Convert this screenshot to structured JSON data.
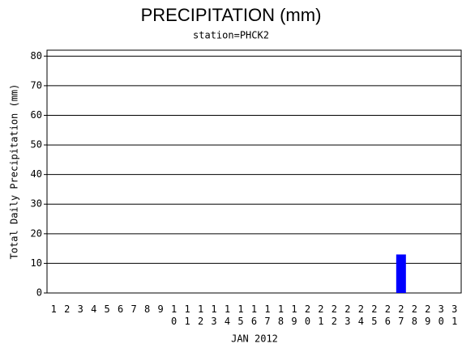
{
  "chart_data": {
    "type": "bar",
    "title": "PRECIPITATION (mm)",
    "subtitle": "station=PHCK2",
    "x_label": "JAN 2012",
    "y_label": "Total Daily Precipitation (mm)",
    "categories": [
      "1",
      "2",
      "3",
      "4",
      "5",
      "6",
      "7",
      "8",
      "9",
      "10",
      "11",
      "12",
      "13",
      "14",
      "15",
      "16",
      "17",
      "18",
      "19",
      "20",
      "21",
      "22",
      "23",
      "24",
      "25",
      "26",
      "27",
      "28",
      "29",
      "30",
      "31"
    ],
    "values": [
      0,
      0,
      0,
      0,
      0,
      0,
      0,
      0,
      0,
      0,
      0,
      0,
      0,
      0,
      0,
      0,
      0,
      0,
      0,
      0,
      0,
      0,
      0,
      0,
      0,
      0,
      13,
      0,
      0,
      0,
      0
    ],
    "color": "#0000ff",
    "ylim": [
      0,
      82
    ],
    "yticks": [
      0,
      10,
      20,
      30,
      40,
      50,
      60,
      70,
      80
    ],
    "grid": true
  }
}
